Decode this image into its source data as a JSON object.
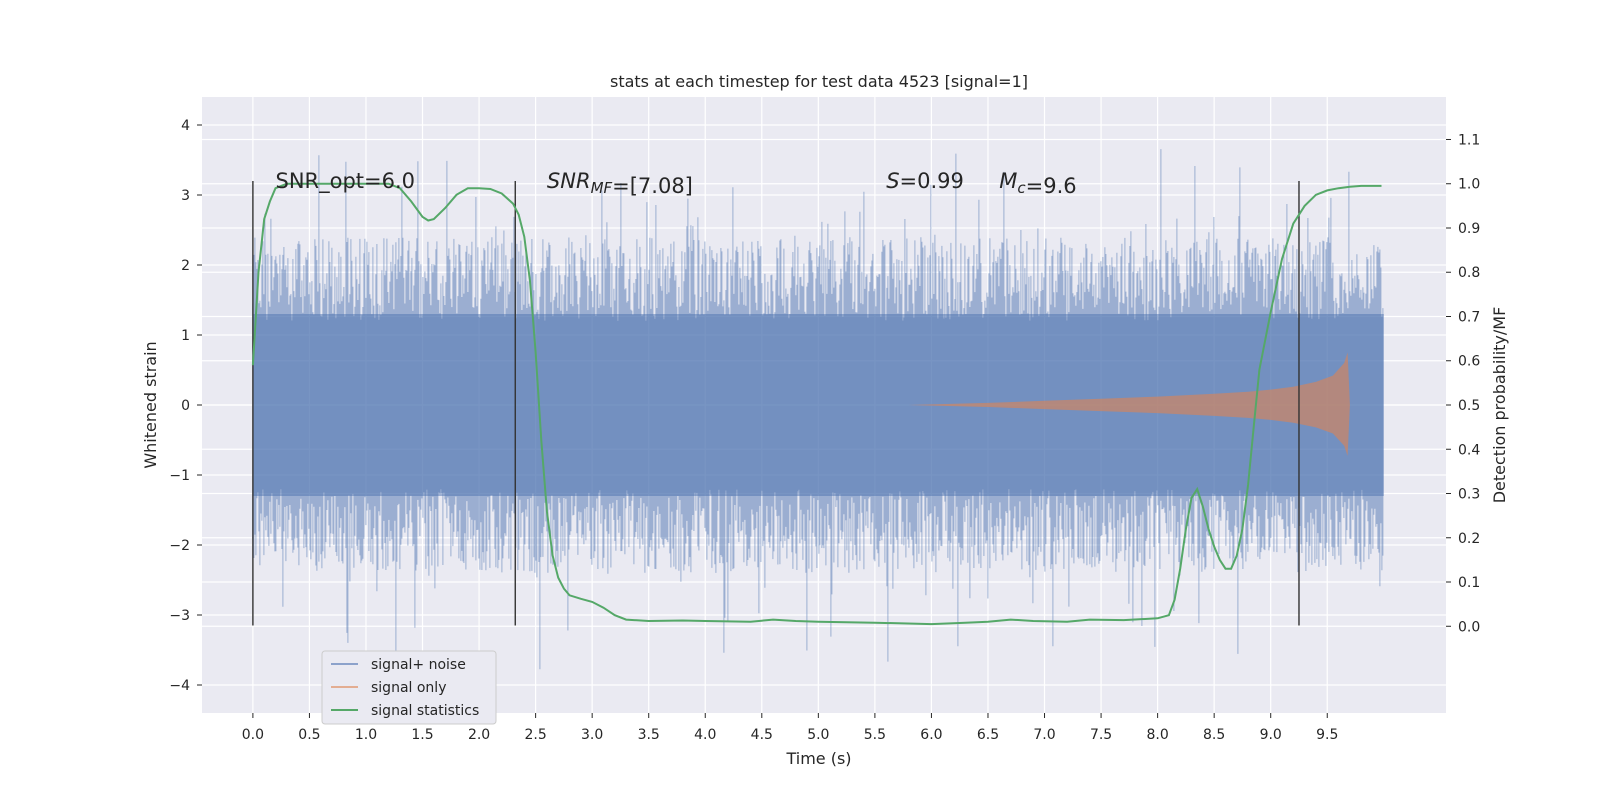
{
  "chart_data": {
    "type": "line",
    "title": "stats at each timestep for test data 4523 [signal=1]",
    "xlabel": "Time (s)",
    "ylabel": "Whitened strain",
    "y2label": "Detection probability/MF",
    "xlim": [
      -0.45,
      10.55
    ],
    "ylim": [
      -4.4,
      4.4
    ],
    "y2lim": [
      -0.196,
      1.196
    ],
    "xticks": [
      0.0,
      0.5,
      1.0,
      1.5,
      2.0,
      2.5,
      3.0,
      3.5,
      4.0,
      4.5,
      5.0,
      5.5,
      6.0,
      6.5,
      7.0,
      7.5,
      8.0,
      8.5,
      9.0,
      9.5
    ],
    "xtick_labels": [
      "0.0",
      "0.5",
      "1.0",
      "1.5",
      "2.0",
      "2.5",
      "3.0",
      "3.5",
      "4.0",
      "4.5",
      "5.0",
      "5.5",
      "6.0",
      "6.5",
      "7.0",
      "7.5",
      "8.0",
      "8.5",
      "9.0",
      "9.5"
    ],
    "yticks": [
      -4,
      -3,
      -2,
      -1,
      0,
      1,
      2,
      3,
      4
    ],
    "ytick_labels": [
      "−4",
      "−3",
      "−2",
      "−1",
      "0",
      "1",
      "2",
      "3",
      "4"
    ],
    "y2ticks": [
      0.0,
      0.1,
      0.2,
      0.3,
      0.4,
      0.5,
      0.6,
      0.7,
      0.8,
      0.9,
      1.0,
      1.1
    ],
    "y2tick_labels": [
      "0.0",
      "0.1",
      "0.2",
      "0.3",
      "0.4",
      "0.5",
      "0.6",
      "0.7",
      "0.8",
      "0.9",
      "1.0",
      "1.1"
    ],
    "grid": true,
    "legend_position": "bottom-left",
    "legend": [
      "signal+ noise",
      "signal only",
      "signal statistics"
    ],
    "colors": {
      "plot_bg": "#eaeaf2",
      "grid": "#ffffff",
      "noise": "#4c72b0",
      "signal": "#dd8452",
      "stats": "#55a868",
      "vline": "#333333"
    },
    "series": [
      {
        "name": "signal+ noise",
        "kind": "noise-band",
        "x_range": [
          0.0,
          10.0
        ],
        "core_amplitude": 1.3,
        "peak_max": 4.05,
        "peak_min": -4.05
      },
      {
        "name": "signal only",
        "kind": "chirp-envelope",
        "x": [
          5.8,
          6.5,
          7.0,
          7.5,
          8.0,
          8.5,
          8.8,
          9.0,
          9.2,
          9.4,
          9.55,
          9.65,
          9.68,
          9.7
        ],
        "envelope": [
          0.0,
          0.03,
          0.06,
          0.09,
          0.12,
          0.16,
          0.19,
          0.22,
          0.26,
          0.33,
          0.42,
          0.6,
          0.75,
          0.0
        ]
      },
      {
        "name": "signal statistics",
        "axis": "right",
        "x": [
          0.0,
          0.05,
          0.1,
          0.15,
          0.2,
          0.3,
          0.5,
          0.8,
          1.0,
          1.2,
          1.3,
          1.4,
          1.5,
          1.55,
          1.6,
          1.7,
          1.8,
          1.9,
          2.0,
          2.1,
          2.2,
          2.3,
          2.35,
          2.4,
          2.45,
          2.5,
          2.55,
          2.6,
          2.65,
          2.7,
          2.75,
          2.8,
          2.9,
          3.0,
          3.1,
          3.2,
          3.3,
          3.5,
          3.8,
          4.0,
          4.4,
          4.6,
          4.8,
          5.0,
          5.5,
          6.0,
          6.3,
          6.5,
          6.7,
          6.9,
          7.2,
          7.4,
          7.7,
          8.0,
          8.1,
          8.15,
          8.2,
          8.25,
          8.3,
          8.35,
          8.4,
          8.45,
          8.5,
          8.55,
          8.6,
          8.65,
          8.7,
          8.75,
          8.8,
          8.85,
          8.9,
          9.0,
          9.1,
          9.2,
          9.3,
          9.4,
          9.5,
          9.6,
          9.7,
          9.8,
          9.9,
          9.98
        ],
        "y": [
          0.59,
          0.8,
          0.92,
          0.96,
          0.99,
          1.0,
          1.0,
          1.0,
          1.0,
          1.0,
          0.99,
          0.96,
          0.925,
          0.917,
          0.92,
          0.945,
          0.975,
          0.99,
          0.99,
          0.988,
          0.978,
          0.955,
          0.93,
          0.88,
          0.78,
          0.62,
          0.42,
          0.26,
          0.16,
          0.11,
          0.085,
          0.07,
          0.062,
          0.055,
          0.042,
          0.025,
          0.015,
          0.012,
          0.013,
          0.012,
          0.01,
          0.015,
          0.012,
          0.01,
          0.008,
          0.005,
          0.008,
          0.01,
          0.015,
          0.012,
          0.01,
          0.015,
          0.014,
          0.018,
          0.025,
          0.06,
          0.13,
          0.22,
          0.29,
          0.31,
          0.27,
          0.22,
          0.18,
          0.15,
          0.13,
          0.13,
          0.16,
          0.22,
          0.32,
          0.45,
          0.58,
          0.71,
          0.83,
          0.91,
          0.95,
          0.975,
          0.985,
          0.99,
          0.993,
          0.995,
          0.995,
          0.995
        ]
      }
    ],
    "vertical_lines": [
      0.0,
      2.32,
      9.25
    ],
    "vertical_line_range": [
      -3.15,
      3.2
    ],
    "annotations": [
      {
        "x": 0.2,
        "y": 3.2,
        "parts": [
          {
            "t": "SNR_opt=6.0",
            "italic": false
          }
        ]
      },
      {
        "x": 2.6,
        "y": 3.2,
        "parts": [
          {
            "t": "SNR",
            "italic": true
          },
          {
            "t": "MF",
            "italic": true,
            "sub": true
          },
          {
            "t": "=[7.08]",
            "italic": false
          }
        ]
      },
      {
        "x": 5.6,
        "y": 3.2,
        "parts": [
          {
            "t": "S",
            "italic": true
          },
          {
            "t": "=0.99",
            "italic": false
          }
        ]
      },
      {
        "x": 6.6,
        "y": 3.2,
        "parts": [
          {
            "t": "M",
            "italic": true
          },
          {
            "t": "c",
            "italic": true,
            "sub": true
          },
          {
            "t": "=9.6",
            "italic": false
          }
        ]
      }
    ]
  }
}
